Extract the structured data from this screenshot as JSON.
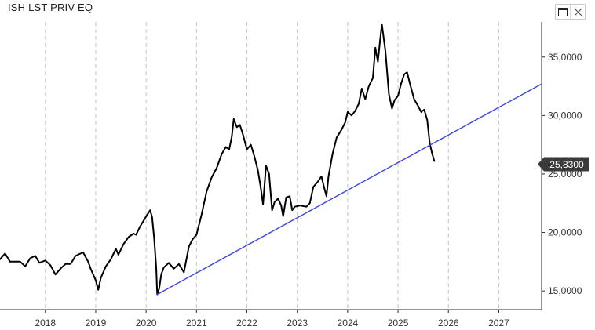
{
  "window": {
    "title": "ISH LST PRIV EQ",
    "controls": [
      {
        "name": "maximize-icon"
      },
      {
        "name": "close-icon"
      }
    ]
  },
  "chart_data": {
    "type": "line",
    "title": "ISH LST PRIV EQ",
    "xlabel": "",
    "ylabel": "",
    "xlim": [
      2017.1,
      2027.85
    ],
    "ylim": [
      13400,
      38000
    ],
    "grid": {
      "vertical": true,
      "horizontal": false
    },
    "x_ticks": [
      {
        "value": 2018.0,
        "label": "2018"
      },
      {
        "value": 2019.0,
        "label": "2019"
      },
      {
        "value": 2020.0,
        "label": "2020"
      },
      {
        "value": 2021.0,
        "label": "2021"
      },
      {
        "value": 2022.0,
        "label": "2022"
      },
      {
        "value": 2023.0,
        "label": "2023"
      },
      {
        "value": 2024.0,
        "label": "2024"
      },
      {
        "value": 2025.0,
        "label": "2025"
      },
      {
        "value": 2026.0,
        "label": "2026"
      },
      {
        "value": 2027.0,
        "label": "2027"
      }
    ],
    "y_ticks": [
      {
        "value": 15000,
        "label": "15,0000"
      },
      {
        "value": 20000,
        "label": "20,0000"
      },
      {
        "value": 25000,
        "label": "25,0000"
      },
      {
        "value": 30000,
        "label": "30,0000"
      },
      {
        "value": 35000,
        "label": "35,0000"
      }
    ],
    "last_price": {
      "value": 25830,
      "label": "25,8300",
      "color": "#3a3a3a"
    },
    "series": [
      {
        "color": "#000000",
        "points": [
          [
            2017.1,
            17700
          ],
          [
            2017.2,
            18200
          ],
          [
            2017.3,
            17500
          ],
          [
            2017.5,
            17500
          ],
          [
            2017.6,
            17100
          ],
          [
            2017.7,
            17800
          ],
          [
            2017.8,
            18000
          ],
          [
            2017.88,
            17400
          ],
          [
            2018.0,
            17600
          ],
          [
            2018.1,
            17200
          ],
          [
            2018.2,
            16400
          ],
          [
            2018.3,
            16900
          ],
          [
            2018.4,
            17300
          ],
          [
            2018.5,
            17300
          ],
          [
            2018.6,
            18000
          ],
          [
            2018.75,
            18300
          ],
          [
            2018.85,
            17500
          ],
          [
            2018.9,
            16900
          ],
          [
            2019.0,
            15900
          ],
          [
            2019.05,
            15100
          ],
          [
            2019.1,
            16100
          ],
          [
            2019.2,
            17100
          ],
          [
            2019.3,
            17700
          ],
          [
            2019.4,
            18600
          ],
          [
            2019.45,
            18100
          ],
          [
            2019.55,
            19000
          ],
          [
            2019.65,
            19600
          ],
          [
            2019.75,
            19900
          ],
          [
            2019.8,
            19800
          ],
          [
            2019.88,
            20500
          ],
          [
            2019.95,
            21000
          ],
          [
            2020.02,
            21500
          ],
          [
            2020.08,
            21900
          ],
          [
            2020.12,
            21300
          ],
          [
            2020.16,
            19500
          ],
          [
            2020.2,
            17000
          ],
          [
            2020.22,
            14700
          ],
          [
            2020.26,
            15200
          ],
          [
            2020.3,
            16400
          ],
          [
            2020.35,
            17000
          ],
          [
            2020.45,
            17400
          ],
          [
            2020.55,
            16900
          ],
          [
            2020.65,
            17300
          ],
          [
            2020.75,
            16600
          ],
          [
            2020.8,
            17700
          ],
          [
            2020.85,
            18800
          ],
          [
            2020.92,
            19400
          ],
          [
            2021.0,
            19800
          ],
          [
            2021.1,
            21500
          ],
          [
            2021.2,
            23500
          ],
          [
            2021.3,
            24700
          ],
          [
            2021.4,
            25500
          ],
          [
            2021.5,
            26700
          ],
          [
            2021.58,
            27300
          ],
          [
            2021.65,
            27100
          ],
          [
            2021.7,
            28200
          ],
          [
            2021.74,
            29700
          ],
          [
            2021.8,
            29000
          ],
          [
            2021.86,
            29200
          ],
          [
            2021.92,
            28400
          ],
          [
            2022.0,
            27100
          ],
          [
            2022.08,
            27500
          ],
          [
            2022.15,
            26500
          ],
          [
            2022.22,
            25300
          ],
          [
            2022.27,
            24000
          ],
          [
            2022.32,
            22400
          ],
          [
            2022.38,
            25700
          ],
          [
            2022.44,
            25000
          ],
          [
            2022.5,
            21900
          ],
          [
            2022.55,
            22600
          ],
          [
            2022.62,
            22900
          ],
          [
            2022.68,
            22300
          ],
          [
            2022.72,
            21400
          ],
          [
            2022.78,
            23000
          ],
          [
            2022.85,
            23100
          ],
          [
            2022.9,
            21900
          ],
          [
            2022.95,
            22200
          ],
          [
            2023.05,
            22300
          ],
          [
            2023.18,
            22200
          ],
          [
            2023.25,
            22500
          ],
          [
            2023.32,
            23900
          ],
          [
            2023.4,
            24300
          ],
          [
            2023.48,
            24800
          ],
          [
            2023.53,
            23900
          ],
          [
            2023.58,
            23100
          ],
          [
            2023.62,
            24800
          ],
          [
            2023.7,
            26700
          ],
          [
            2023.78,
            28100
          ],
          [
            2023.88,
            28800
          ],
          [
            2023.95,
            29400
          ],
          [
            2024.0,
            30300
          ],
          [
            2024.08,
            30000
          ],
          [
            2024.15,
            30400
          ],
          [
            2024.22,
            31000
          ],
          [
            2024.28,
            32300
          ],
          [
            2024.35,
            31400
          ],
          [
            2024.42,
            32500
          ],
          [
            2024.5,
            33200
          ],
          [
            2024.55,
            35800
          ],
          [
            2024.6,
            34600
          ],
          [
            2024.64,
            36300
          ],
          [
            2024.68,
            37800
          ],
          [
            2024.75,
            35500
          ],
          [
            2024.82,
            31800
          ],
          [
            2024.88,
            30600
          ],
          [
            2024.93,
            31300
          ],
          [
            2025.0,
            31700
          ],
          [
            2025.06,
            32700
          ],
          [
            2025.12,
            33500
          ],
          [
            2025.18,
            33700
          ],
          [
            2025.25,
            32500
          ],
          [
            2025.32,
            31400
          ],
          [
            2025.4,
            30800
          ],
          [
            2025.46,
            30300
          ],
          [
            2025.52,
            30500
          ],
          [
            2025.58,
            29600
          ],
          [
            2025.63,
            27600
          ],
          [
            2025.68,
            26700
          ],
          [
            2025.72,
            26100
          ]
        ]
      },
      {
        "color": "#3b47e0",
        "points": [
          [
            2020.22,
            14700
          ],
          [
            2027.85,
            32700
          ]
        ]
      }
    ]
  }
}
